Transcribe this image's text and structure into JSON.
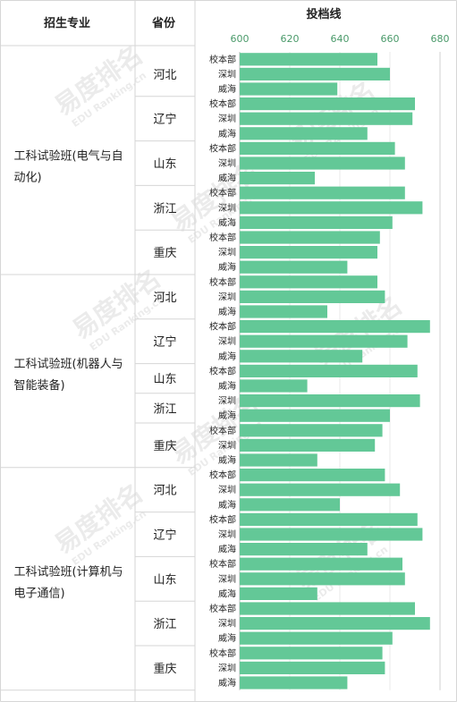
{
  "chart_data": {
    "type": "bar",
    "orientation": "horizontal",
    "headers": {
      "major": "招生专业",
      "province": "省份",
      "score": "投档线"
    },
    "xlim": [
      600,
      680
    ],
    "xticks": [
      600,
      620,
      640,
      660,
      680
    ],
    "watermark": {
      "text": "易度排名",
      "subtext": "EDU Ranking.cn"
    },
    "groups": [
      {
        "major_lines": [
          "工科试验班(电气与自",
          "动化)"
        ],
        "provinces": [
          {
            "name": "河北",
            "rows": [
              {
                "campus": "校本部",
                "value": 655
              },
              {
                "campus": "深圳",
                "value": 660
              },
              {
                "campus": "威海",
                "value": 639
              }
            ]
          },
          {
            "name": "辽宁",
            "rows": [
              {
                "campus": "校本部",
                "value": 670
              },
              {
                "campus": "深圳",
                "value": 669
              },
              {
                "campus": "威海",
                "value": 651
              }
            ]
          },
          {
            "name": "山东",
            "rows": [
              {
                "campus": "校本部",
                "value": 662
              },
              {
                "campus": "深圳",
                "value": 666
              },
              {
                "campus": "威海",
                "value": 630
              }
            ]
          },
          {
            "name": "浙江",
            "rows": [
              {
                "campus": "校本部",
                "value": 666
              },
              {
                "campus": "深圳",
                "value": 673
              },
              {
                "campus": "威海",
                "value": 661
              }
            ]
          },
          {
            "name": "重庆",
            "rows": [
              {
                "campus": "校本部",
                "value": 656
              },
              {
                "campus": "深圳",
                "value": 655
              },
              {
                "campus": "威海",
                "value": 643
              }
            ]
          }
        ]
      },
      {
        "major_lines": [
          "工科试验班(机器人与",
          "智能装备)"
        ],
        "provinces": [
          {
            "name": "河北",
            "rows": [
              {
                "campus": "校本部",
                "value": 655
              },
              {
                "campus": "深圳",
                "value": 658
              },
              {
                "campus": "威海",
                "value": 635
              }
            ]
          },
          {
            "name": "辽宁",
            "rows": [
              {
                "campus": "校本部",
                "value": 676
              },
              {
                "campus": "深圳",
                "value": 667
              },
              {
                "campus": "威海",
                "value": 649
              }
            ]
          },
          {
            "name": "山东",
            "rows": [
              {
                "campus": "校本部",
                "value": 671
              },
              {
                "campus": "威海",
                "value": 627
              }
            ]
          },
          {
            "name": "浙江",
            "rows": [
              {
                "campus": "深圳",
                "value": 672
              },
              {
                "campus": "威海",
                "value": 660
              }
            ]
          },
          {
            "name": "重庆",
            "rows": [
              {
                "campus": "校本部",
                "value": 657
              },
              {
                "campus": "深圳",
                "value": 654
              },
              {
                "campus": "威海",
                "value": 631
              }
            ]
          }
        ]
      },
      {
        "major_lines": [
          "工科试验班(计算机与",
          "电子通信)"
        ],
        "provinces": [
          {
            "name": "河北",
            "rows": [
              {
                "campus": "校本部",
                "value": 658
              },
              {
                "campus": "深圳",
                "value": 664
              },
              {
                "campus": "威海",
                "value": 640
              }
            ]
          },
          {
            "name": "辽宁",
            "rows": [
              {
                "campus": "校本部",
                "value": 671
              },
              {
                "campus": "深圳",
                "value": 673
              },
              {
                "campus": "威海",
                "value": 651
              }
            ]
          },
          {
            "name": "山东",
            "rows": [
              {
                "campus": "校本部",
                "value": 665
              },
              {
                "campus": "深圳",
                "value": 666
              },
              {
                "campus": "威海",
                "value": 631
              }
            ]
          },
          {
            "name": "浙江",
            "rows": [
              {
                "campus": "校本部",
                "value": 670
              },
              {
                "campus": "深圳",
                "value": 676
              },
              {
                "campus": "威海",
                "value": 661
              }
            ]
          },
          {
            "name": "重庆",
            "rows": [
              {
                "campus": "校本部",
                "value": 657
              },
              {
                "campus": "深圳",
                "value": 658
              },
              {
                "campus": "威海",
                "value": 643
              }
            ]
          }
        ]
      }
    ]
  }
}
